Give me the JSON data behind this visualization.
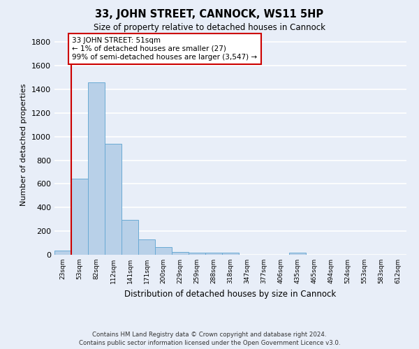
{
  "title": "33, JOHN STREET, CANNOCK, WS11 5HP",
  "subtitle": "Size of property relative to detached houses in Cannock",
  "xlabel": "Distribution of detached houses by size in Cannock",
  "ylabel": "Number of detached properties",
  "bar_labels": [
    "23sqm",
    "53sqm",
    "82sqm",
    "112sqm",
    "141sqm",
    "171sqm",
    "200sqm",
    "229sqm",
    "259sqm",
    "288sqm",
    "318sqm",
    "347sqm",
    "377sqm",
    "406sqm",
    "435sqm",
    "465sqm",
    "494sqm",
    "524sqm",
    "553sqm",
    "583sqm",
    "612sqm"
  ],
  "bar_values": [
    35,
    645,
    1460,
    940,
    295,
    130,
    65,
    25,
    20,
    15,
    15,
    0,
    0,
    0,
    15,
    0,
    0,
    0,
    0,
    0,
    0
  ],
  "bar_color": "#b8d0e8",
  "bar_edge_color": "#6aaad4",
  "annotation_text_line1": "33 JOHN STREET: 51sqm",
  "annotation_text_line2": "← 1% of detached houses are smaller (27)",
  "annotation_text_line3": "99% of semi-detached houses are larger (3,547) →",
  "annotation_box_color": "#ffffff",
  "annotation_box_edge_color": "#cc0000",
  "red_line_color": "#cc0000",
  "background_color": "#e8eef8",
  "fig_background_color": "#e8eef8",
  "grid_color": "#ffffff",
  "footer": "Contains HM Land Registry data © Crown copyright and database right 2024.\nContains public sector information licensed under the Open Government Licence v3.0.",
  "ylim": [
    0,
    1860
  ],
  "yticks": [
    0,
    200,
    400,
    600,
    800,
    1000,
    1200,
    1400,
    1600,
    1800
  ]
}
